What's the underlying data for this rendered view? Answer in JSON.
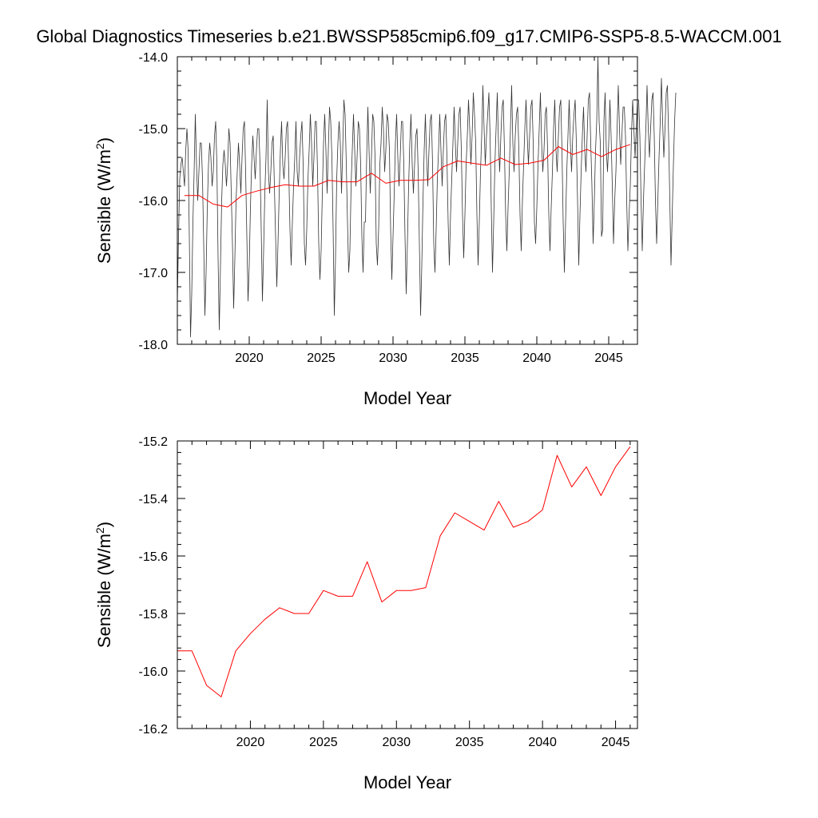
{
  "title": "Global Diagnostics Timeseries b.e21.BWSSP585cmip6.f09_g17.CMIP6-SSP5-8.5-WACCM.001",
  "colors": {
    "monthly": "#333333",
    "annual": "#ff0000",
    "axis": "#000000"
  },
  "chart_data": [
    {
      "type": "line",
      "xlabel": "Model Year",
      "ylabel": "Sensible (W/m",
      "ylabel_sup": "2",
      "ylabel_close": ")",
      "xlim": [
        2015,
        2047
      ],
      "ylim": [
        -18.0,
        -14.0
      ],
      "xticks": [
        2020,
        2025,
        2030,
        2035,
        2040,
        2045
      ],
      "yticks": [
        -18.0,
        -17.0,
        -16.0,
        -15.0,
        -14.0
      ],
      "ytick_labels": [
        "-18.0",
        "-17.0",
        "-16.0",
        "-15.0",
        "-14.0"
      ],
      "series": [
        {
          "style": "monthly",
          "start": 2015.0,
          "step_months": 1,
          "values": [
            -17.4,
            -16.5,
            -15.7,
            -15.5,
            -15.4,
            -15.6,
            -15.8,
            -15.3,
            -15.0,
            -15.3,
            -16.5,
            -17.9,
            -17.3,
            -16.3,
            -15.6,
            -14.8,
            -15.5,
            -16.0,
            -15.6,
            -15.2,
            -15.2,
            -15.7,
            -16.6,
            -17.6,
            -17.0,
            -16.1,
            -15.5,
            -15.2,
            -15.4,
            -15.8,
            -15.6,
            -15.1,
            -14.9,
            -15.5,
            -16.8,
            -17.8,
            -16.9,
            -16.0,
            -15.5,
            -15.3,
            -15.5,
            -15.8,
            -15.5,
            -15.0,
            -15.2,
            -15.9,
            -16.6,
            -17.5,
            -16.8,
            -16.0,
            -15.6,
            -15.2,
            -15.5,
            -15.9,
            -15.4,
            -15.0,
            -14.9,
            -15.6,
            -16.5,
            -17.4,
            -16.9,
            -16.1,
            -15.5,
            -15.1,
            -15.4,
            -15.7,
            -15.3,
            -15.0,
            -15.0,
            -15.5,
            -16.4,
            -17.4,
            -16.7,
            -15.9,
            -15.4,
            -14.6,
            -15.6,
            -15.9,
            -15.6,
            -15.2,
            -15.1,
            -15.8,
            -16.5,
            -17.2,
            -16.6,
            -15.9,
            -15.3,
            -14.9,
            -15.5,
            -15.7,
            -15.4,
            -15.0,
            -14.9,
            -15.6,
            -16.4,
            -16.9,
            -16.3,
            -15.8,
            -15.4,
            -14.9,
            -15.6,
            -15.8,
            -15.4,
            -15.1,
            -14.9,
            -15.5,
            -16.6,
            -16.9,
            -16.4,
            -15.7,
            -15.3,
            -14.8,
            -15.2,
            -15.8,
            -15.4,
            -14.9,
            -14.9,
            -15.6,
            -16.6,
            -17.1,
            -16.7,
            -15.9,
            -15.2,
            -14.8,
            -15.3,
            -15.9,
            -15.3,
            -14.7,
            -14.9,
            -15.4,
            -16.4,
            -17.6,
            -16.8,
            -15.7,
            -15.2,
            -14.9,
            -15.2,
            -15.9,
            -15.3,
            -14.6,
            -14.8,
            -15.5,
            -16.3,
            -17.0,
            -16.7,
            -15.8,
            -15.3,
            -14.8,
            -15.3,
            -15.8,
            -15.4,
            -14.9,
            -15.0,
            -15.5,
            -16.5,
            -17.0,
            -16.3,
            -16.3,
            -15.4,
            -14.7,
            -15.3,
            -15.9,
            -15.4,
            -14.8,
            -14.9,
            -15.4,
            -16.6,
            -16.9,
            -16.4,
            -15.5,
            -15.2,
            -14.7,
            -15.0,
            -15.6,
            -15.3,
            -14.8,
            -14.9,
            -15.3,
            -16.4,
            -17.1,
            -16.5,
            -15.9,
            -15.2,
            -14.8,
            -15.4,
            -15.8,
            -15.4,
            -14.9,
            -14.9,
            -15.5,
            -16.5,
            -17.3,
            -16.6,
            -15.8,
            -15.2,
            -14.8,
            -15.5,
            -15.9,
            -15.5,
            -15.1,
            -15.0,
            -15.6,
            -16.6,
            -17.6,
            -16.9,
            -16.0,
            -15.3,
            -14.8,
            -15.4,
            -15.8,
            -15.3,
            -14.9,
            -14.8,
            -15.5,
            -16.6,
            -17.0,
            -16.4,
            -15.7,
            -15.3,
            -14.8,
            -15.3,
            -15.8,
            -15.3,
            -14.9,
            -14.8,
            -15.4,
            -16.3,
            -16.9,
            -16.2,
            -15.7,
            -15.2,
            -14.7,
            -15.2,
            -15.6,
            -15.2,
            -14.8,
            -14.7,
            -15.3,
            -16.2,
            -16.8,
            -16.2,
            -15.5,
            -15.1,
            -14.6,
            -15.0,
            -15.5,
            -15.1,
            -14.5,
            -14.8,
            -15.2,
            -16.2,
            -16.9,
            -16.3,
            -15.6,
            -15.1,
            -14.4,
            -15.0,
            -15.5,
            -15.1,
            -14.8,
            -14.5,
            -15.1,
            -16.1,
            -17.0,
            -16.3,
            -15.5,
            -15.0,
            -14.5,
            -15.2,
            -15.6,
            -15.1,
            -14.7,
            -14.6,
            -15.3,
            -16.2,
            -16.7,
            -16.1,
            -15.6,
            -15.0,
            -14.4,
            -15.2,
            -15.6,
            -15.1,
            -14.8,
            -14.7,
            -15.3,
            -16.2,
            -16.7,
            -16.0,
            -15.5,
            -15.0,
            -14.6,
            -15.1,
            -15.5,
            -15.1,
            -14.7,
            -14.6,
            -15.2,
            -16.3,
            -16.6,
            -16.1,
            -15.5,
            -15.0,
            -14.5,
            -15.2,
            -15.6,
            -15.3,
            -14.8,
            -14.7,
            -15.3,
            -16.2,
            -16.7,
            -16.1,
            -15.6,
            -15.0,
            -14.6,
            -15.3,
            -15.6,
            -15.1,
            -14.7,
            -14.6,
            -15.3,
            -16.3,
            -17.0,
            -16.3,
            -15.6,
            -15.1,
            -14.6,
            -15.2,
            -15.6,
            -15.1,
            -14.8,
            -14.6,
            -15.2,
            -16.0,
            -16.9,
            -16.2,
            -15.6,
            -15.1,
            -14.7,
            -15.3,
            -15.6,
            -15.1,
            -14.6,
            -14.5,
            -15.2,
            -15.8,
            -16.6,
            -16.0,
            -15.3,
            -14.9,
            -14.0,
            -14.9,
            -15.2,
            -16.5,
            -16.4,
            -14.9,
            -14.5,
            -15.3,
            -15.6,
            -15.2,
            -14.6,
            -15.1,
            -15.8,
            -16.6,
            -16.0,
            -15.6,
            -15.0,
            -14.4,
            -15.0,
            -15.5,
            -15.1,
            -14.7,
            -14.7,
            -15.1,
            -16.0,
            -16.7,
            -16.2,
            -15.8,
            -15.1,
            -14.6,
            -15.0,
            -15.4,
            -15.0,
            -14.6,
            -14.6,
            -15.1,
            -16.0,
            -16.7,
            -16.0,
            -15.5,
            -15.0,
            -14.4,
            -15.0,
            -15.4,
            -15.0,
            -14.6,
            -14.5,
            -15.1,
            -16.0,
            -16.6,
            -16.0,
            -15.4,
            -14.9,
            -14.3,
            -14.9,
            -15.4,
            -15.0,
            -14.5,
            -14.4,
            -15.1,
            -16.0,
            -16.9,
            -16.2,
            -15.5,
            -14.9,
            -14.5
          ]
        },
        {
          "style": "annual",
          "x": [
            2015.5,
            2016.5,
            2017.5,
            2018.5,
            2019.5,
            2020.5,
            2021.5,
            2022.5,
            2023.5,
            2024.5,
            2025.5,
            2026.5,
            2027.5,
            2028.5,
            2029.5,
            2030.5,
            2031.5,
            2032.5,
            2033.5,
            2034.5,
            2035.5,
            2036.5,
            2037.5,
            2038.5,
            2039.5,
            2040.5,
            2041.5,
            2042.5,
            2043.5,
            2044.5,
            2045.5,
            2046.5
          ],
          "values": [
            -15.93,
            -15.93,
            -16.05,
            -16.09,
            -15.93,
            -15.87,
            -15.82,
            -15.78,
            -15.8,
            -15.8,
            -15.72,
            -15.74,
            -15.74,
            -15.62,
            -15.76,
            -15.72,
            -15.72,
            -15.71,
            -15.53,
            -15.45,
            -15.48,
            -15.51,
            -15.41,
            -15.5,
            -15.48,
            -15.44,
            -15.25,
            -15.36,
            -15.29,
            -15.39,
            -15.29,
            -15.22
          ]
        }
      ]
    },
    {
      "type": "line",
      "xlabel": "Model Year",
      "ylabel": "Sensible (W/m",
      "ylabel_sup": "2",
      "ylabel_close": ")",
      "xlim": [
        2015,
        2046.5
      ],
      "ylim": [
        -16.2,
        -15.2
      ],
      "xticks": [
        2020,
        2025,
        2030,
        2035,
        2040,
        2045
      ],
      "yticks": [
        -16.2,
        -16.0,
        -15.8,
        -15.6,
        -15.4,
        -15.2
      ],
      "ytick_labels": [
        "-16.2",
        "-16.0",
        "-15.8",
        "-15.6",
        "-15.4",
        "-15.2"
      ],
      "series": [
        {
          "style": "annual",
          "x": [
            2015.0,
            2016.0,
            2017.0,
            2018.0,
            2019.0,
            2020.0,
            2021.0,
            2022.0,
            2023.0,
            2024.0,
            2025.0,
            2026.0,
            2027.0,
            2028.0,
            2029.0,
            2030.0,
            2031.0,
            2032.0,
            2033.0,
            2034.0,
            2035.0,
            2036.0,
            2037.0,
            2038.0,
            2039.0,
            2040.0,
            2041.0,
            2042.0,
            2043.0,
            2044.0,
            2045.0,
            2046.0
          ],
          "values": [
            -15.93,
            -15.93,
            -16.05,
            -16.09,
            -15.93,
            -15.87,
            -15.82,
            -15.78,
            -15.8,
            -15.8,
            -15.72,
            -15.74,
            -15.74,
            -15.62,
            -15.76,
            -15.72,
            -15.72,
            -15.71,
            -15.53,
            -15.45,
            -15.48,
            -15.51,
            -15.41,
            -15.5,
            -15.48,
            -15.44,
            -15.25,
            -15.36,
            -15.29,
            -15.39,
            -15.29,
            -15.22
          ]
        }
      ]
    }
  ]
}
